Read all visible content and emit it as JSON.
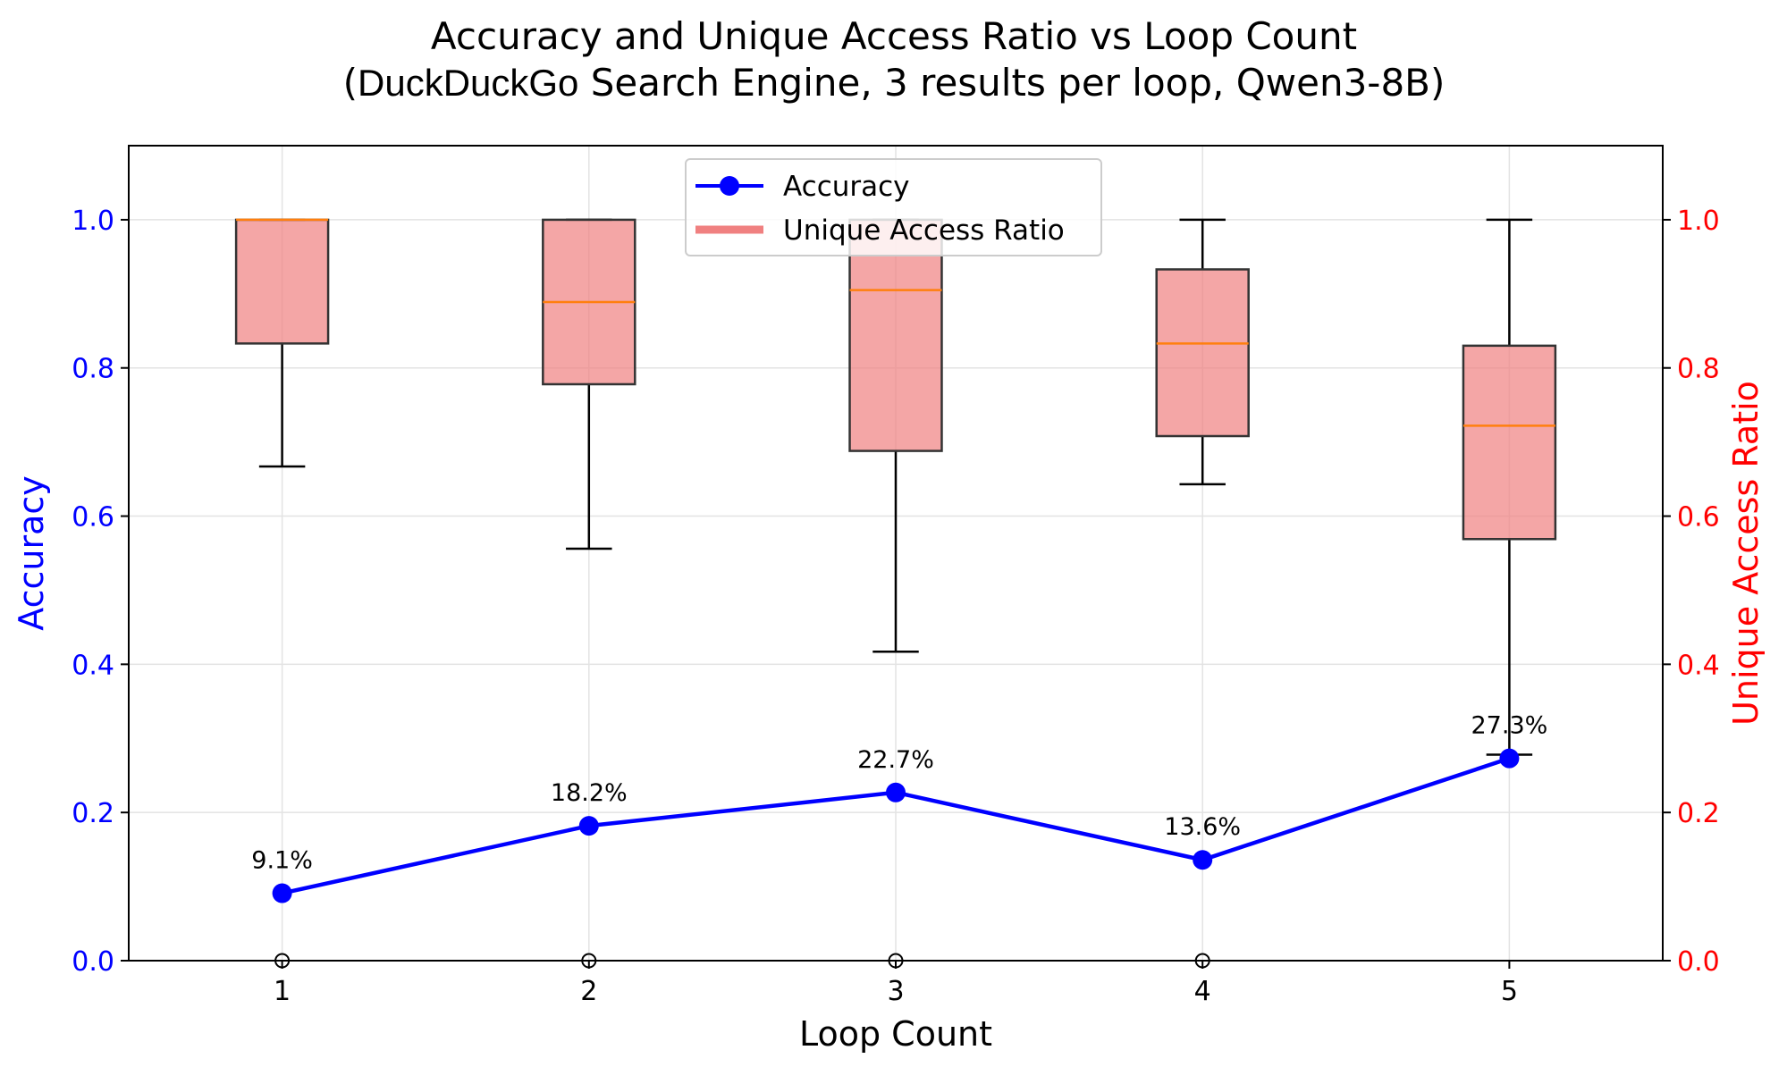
{
  "chart_data": {
    "type": "line+boxplot",
    "title_line1": "Accuracy and Unique Access Ratio vs Loop Count",
    "title_line2_open": "(",
    "title_brand": "DuckDuckGo",
    "title_line2_rest": " Search Engine, 3 results per loop, Qwen3-8B)",
    "xlabel": "Loop Count",
    "ylabel_left": "Accuracy",
    "ylabel_right": "Unique Access Ratio",
    "categories": [
      "1",
      "2",
      "3",
      "4",
      "5"
    ],
    "xlim": [
      0.5,
      5.5
    ],
    "ylim_left": [
      0.0,
      1.1
    ],
    "ylim_right": [
      0.0,
      1.1
    ],
    "yticks": [
      0.0,
      0.2,
      0.4,
      0.6,
      0.8,
      1.0
    ],
    "ytick_labels": [
      "0.0",
      "0.2",
      "0.4",
      "0.6",
      "0.8",
      "1.0"
    ],
    "grid": true,
    "legend_position": "top-center",
    "colors": {
      "accuracy": "#0000ff",
      "box_fill": "#f08080",
      "median": "#ff7f0e",
      "right_axis": "#ff0000"
    },
    "series": [
      {
        "name": "Accuracy",
        "kind": "line",
        "x": [
          1,
          2,
          3,
          4,
          5
        ],
        "values": [
          0.091,
          0.182,
          0.227,
          0.136,
          0.273
        ],
        "labels": [
          "9.1%",
          "18.2%",
          "22.7%",
          "13.6%",
          "27.3%"
        ]
      },
      {
        "name": "Unique Access Ratio",
        "kind": "boxplot",
        "boxes": [
          {
            "x": 1,
            "whisker_low": 0.667,
            "q1": 0.833,
            "median": 1.0,
            "q3": 1.0,
            "whisker_high": 1.0,
            "outliers": [
              0.0
            ]
          },
          {
            "x": 2,
            "whisker_low": 0.556,
            "q1": 0.778,
            "median": 0.889,
            "q3": 1.0,
            "whisker_high": 1.0,
            "outliers": [
              0.0
            ]
          },
          {
            "x": 3,
            "whisker_low": 0.417,
            "q1": 0.688,
            "median": 0.905,
            "q3": 1.0,
            "whisker_high": 1.0,
            "outliers": [
              0.0
            ]
          },
          {
            "x": 4,
            "whisker_low": 0.643,
            "q1": 0.708,
            "median": 0.833,
            "q3": 0.933,
            "whisker_high": 1.0,
            "outliers": [
              0.0
            ]
          },
          {
            "x": 5,
            "whisker_low": 0.278,
            "q1": 0.569,
            "median": 0.722,
            "q3": 0.83,
            "whisker_high": 1.0,
            "outliers": []
          }
        ]
      }
    ]
  }
}
